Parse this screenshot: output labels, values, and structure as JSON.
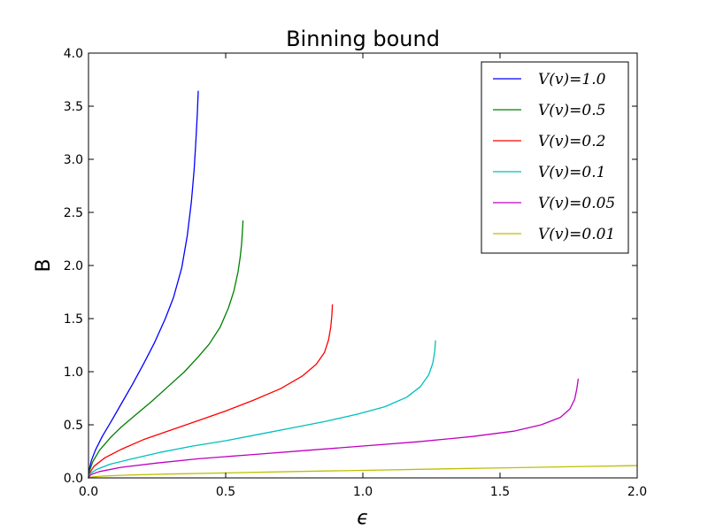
{
  "chart_data": {
    "type": "line",
    "title": "Binning bound",
    "xlabel": "ϵ",
    "ylabel": "B",
    "xlim": [
      0.0,
      2.0
    ],
    "ylim": [
      0.0,
      4.0
    ],
    "xticks": [
      "0.0",
      "0.5",
      "1.0",
      "1.5",
      "2.0"
    ],
    "yticks": [
      "0.0",
      "0.5",
      "1.0",
      "1.5",
      "2.0",
      "2.5",
      "3.0",
      "3.5",
      "4.0"
    ],
    "grid": false,
    "legend_position": "top-right",
    "series": [
      {
        "name": "V(v)=1.0",
        "color": "#0000ff",
        "x": [
          0.0,
          0.002,
          0.01,
          0.025,
          0.05,
          0.08,
          0.12,
          0.16,
          0.2,
          0.24,
          0.28,
          0.31,
          0.34,
          0.36,
          0.375,
          0.385,
          0.392,
          0.397,
          0.4
        ],
        "y": [
          0.0,
          0.07,
          0.16,
          0.26,
          0.39,
          0.52,
          0.7,
          0.88,
          1.07,
          1.27,
          1.5,
          1.7,
          1.98,
          2.28,
          2.6,
          2.9,
          3.2,
          3.45,
          3.64
        ]
      },
      {
        "name": "V(v)=0.5",
        "color": "#008000",
        "x": [
          0.0,
          0.003,
          0.015,
          0.04,
          0.08,
          0.12,
          0.17,
          0.23,
          0.29,
          0.35,
          0.4,
          0.44,
          0.48,
          0.51,
          0.53,
          0.545,
          0.553,
          0.558,
          0.561,
          0.563
        ],
        "y": [
          0.0,
          0.06,
          0.15,
          0.26,
          0.38,
          0.48,
          0.59,
          0.72,
          0.86,
          1.0,
          1.14,
          1.26,
          1.42,
          1.6,
          1.76,
          1.94,
          2.08,
          2.2,
          2.32,
          2.42
        ]
      },
      {
        "name": "V(v)=0.2",
        "color": "#ff0000",
        "x": [
          0.0,
          0.005,
          0.02,
          0.06,
          0.12,
          0.2,
          0.3,
          0.4,
          0.5,
          0.6,
          0.7,
          0.78,
          0.83,
          0.86,
          0.875,
          0.883,
          0.887,
          0.889
        ],
        "y": [
          0.0,
          0.05,
          0.11,
          0.19,
          0.27,
          0.36,
          0.45,
          0.54,
          0.63,
          0.73,
          0.84,
          0.96,
          1.07,
          1.18,
          1.3,
          1.42,
          1.53,
          1.63
        ]
      },
      {
        "name": "V(v)=0.1",
        "color": "#00bfbf",
        "x": [
          0.0,
          0.005,
          0.03,
          0.08,
          0.16,
          0.26,
          0.38,
          0.5,
          0.62,
          0.74,
          0.86,
          0.98,
          1.08,
          1.16,
          1.21,
          1.24,
          1.255,
          1.262,
          1.265
        ],
        "y": [
          0.0,
          0.04,
          0.08,
          0.13,
          0.18,
          0.24,
          0.3,
          0.35,
          0.41,
          0.47,
          0.53,
          0.6,
          0.67,
          0.76,
          0.86,
          0.97,
          1.08,
          1.19,
          1.29
        ]
      },
      {
        "name": "V(v)=0.05",
        "color": "#bf00bf",
        "x": [
          0.0,
          0.008,
          0.04,
          0.12,
          0.25,
          0.4,
          0.6,
          0.8,
          1.0,
          1.2,
          1.4,
          1.55,
          1.65,
          1.72,
          1.755,
          1.772,
          1.78,
          1.785
        ],
        "y": [
          0.0,
          0.03,
          0.06,
          0.1,
          0.14,
          0.18,
          0.22,
          0.26,
          0.3,
          0.34,
          0.39,
          0.44,
          0.5,
          0.57,
          0.65,
          0.74,
          0.84,
          0.93
        ]
      },
      {
        "name": "V(v)=0.01",
        "color": "#bfbf00",
        "x": [
          0.0,
          0.01,
          0.05,
          0.15,
          0.3,
          0.5,
          0.75,
          1.0,
          1.25,
          1.5,
          1.75,
          2.0
        ],
        "y": [
          0.0,
          0.008,
          0.017,
          0.027,
          0.037,
          0.047,
          0.06,
          0.071,
          0.083,
          0.094,
          0.105,
          0.116
        ]
      }
    ]
  }
}
